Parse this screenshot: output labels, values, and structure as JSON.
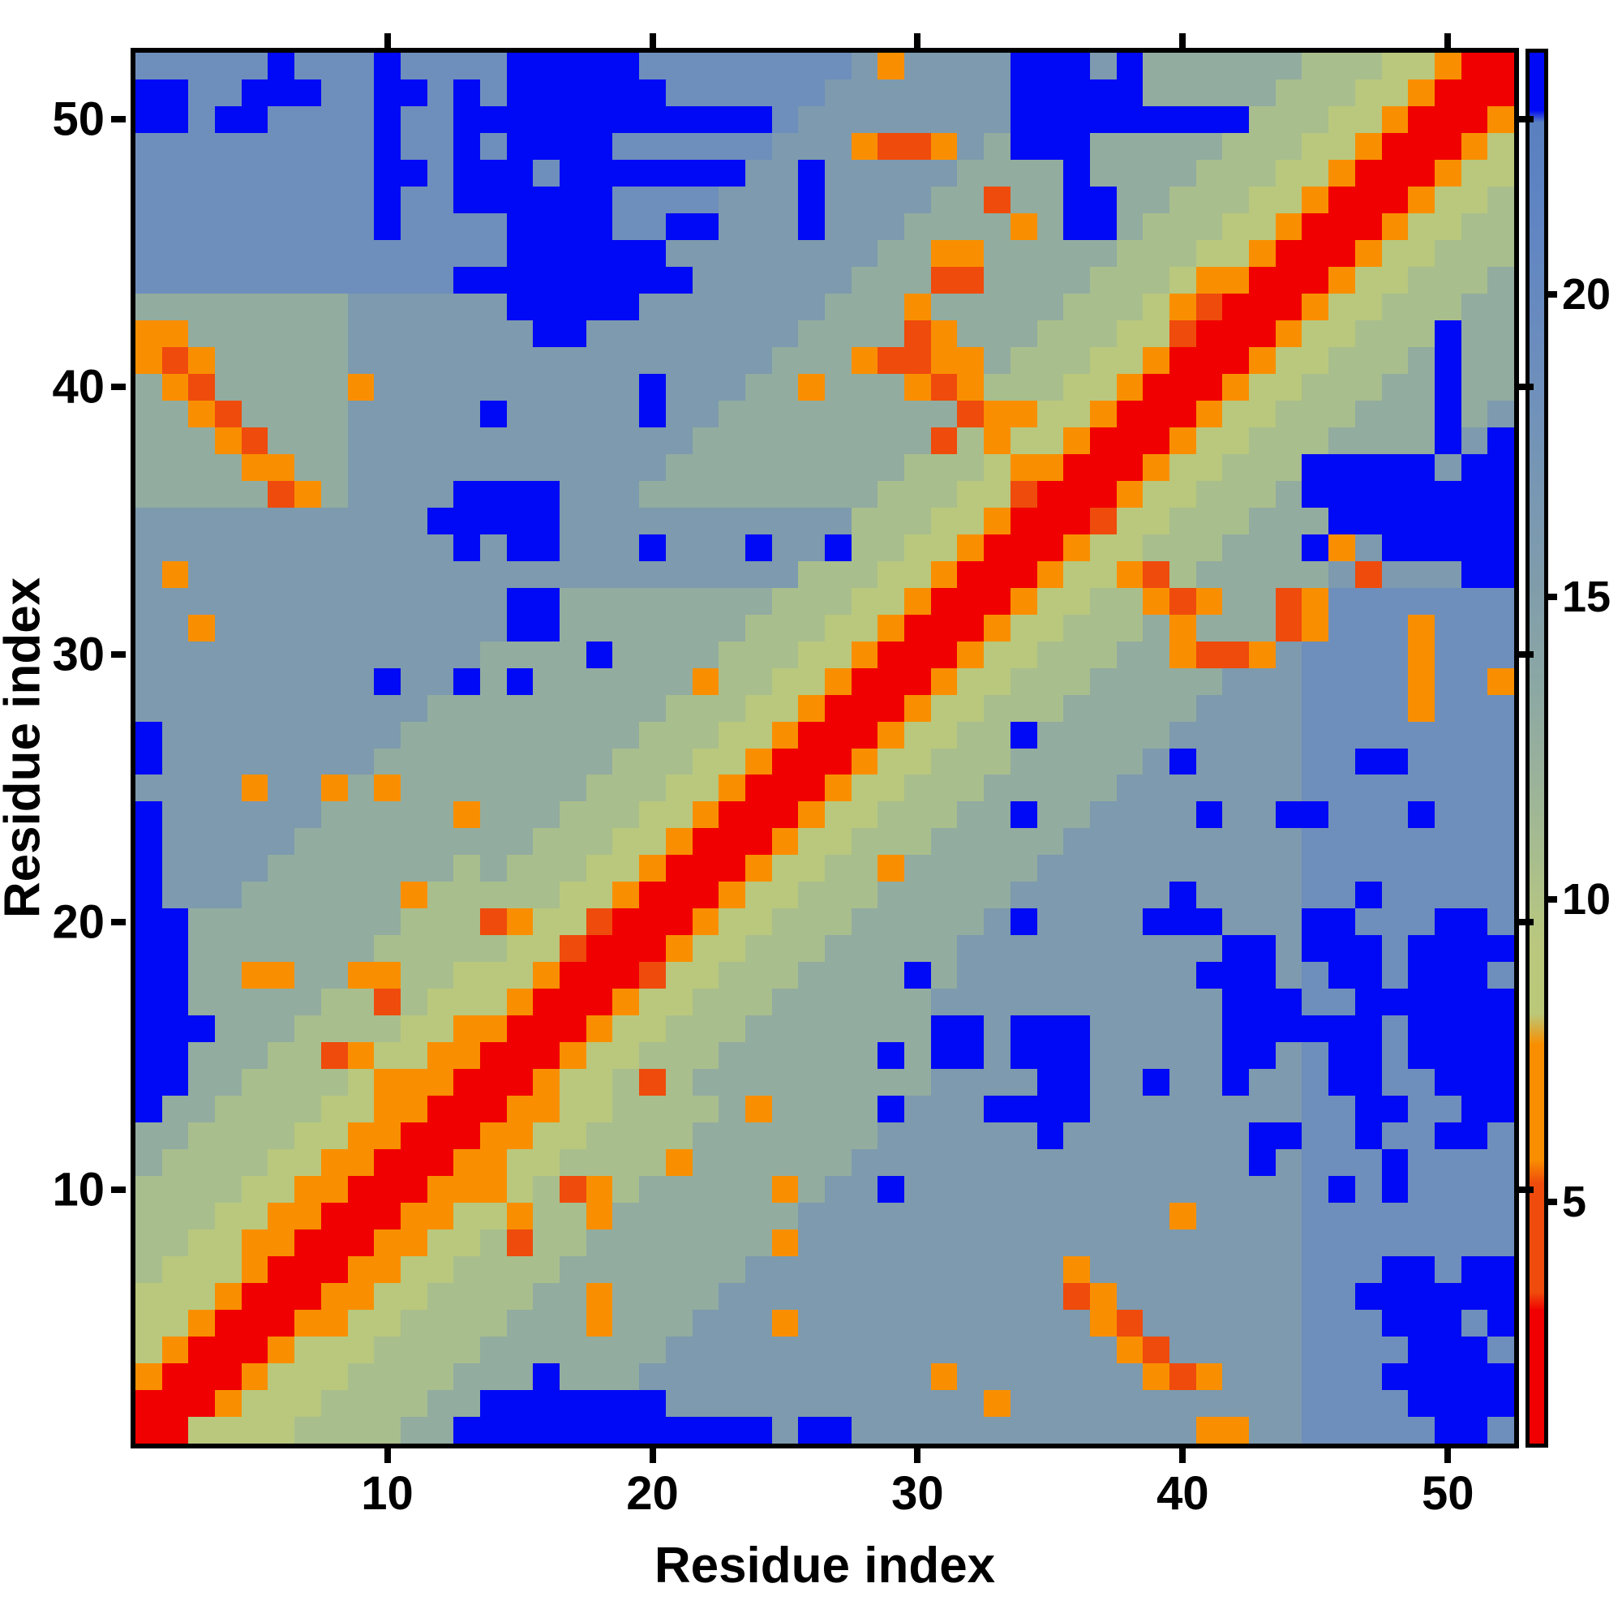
{
  "figure": {
    "background": "#ffffff",
    "frame_color": "#000000",
    "x_axis": {
      "label": "Residue index",
      "ticks": [
        10,
        20,
        30,
        40,
        50
      ],
      "range": [
        0.5,
        52.5
      ]
    },
    "y_axis": {
      "label": "Residue index",
      "ticks": [
        10,
        20,
        30,
        40,
        50
      ],
      "range": [
        0.5,
        52.5
      ]
    },
    "colorbar": {
      "ticks": [
        5,
        10,
        15,
        20
      ],
      "value_range": [
        1,
        24
      ],
      "side": "right"
    }
  },
  "chart_data": {
    "type": "heatmap",
    "title": "",
    "xlabel": "Residue index",
    "ylabel": "Residue index",
    "n_residues": 52,
    "grid": false,
    "legend_position": "right-colorbar",
    "description": "Symmetric residue-residue distance matrix; red diagonal (short distances), orange flanking bands, green/gray mid-range background, pure blue cells for largest distances (>23).",
    "value_map": {
      "R": 2.0,
      "D": 4.5,
      "O": 6.5,
      "y": 9.0,
      "g": 10.6,
      "a": 12.8,
      "b": 15.8,
      "s": 18.6,
      "B": 20.8,
      "U": 23.5
    },
    "colormap_stops": [
      [
        1.0,
        "#f00000"
      ],
      [
        3.2,
        "#f00000"
      ],
      [
        3.5,
        "#ef4b0c"
      ],
      [
        5.3,
        "#ef4b0c"
      ],
      [
        5.7,
        "#f98f00"
      ],
      [
        7.6,
        "#f98f00"
      ],
      [
        8.1,
        "#bac878"
      ],
      [
        9.3,
        "#b9c87e"
      ],
      [
        10.7,
        "#a8bd8e"
      ],
      [
        12.2,
        "#98b09c"
      ],
      [
        13.6,
        "#8ba7a4"
      ],
      [
        15.2,
        "#809cab"
      ],
      [
        16.8,
        "#7897b3"
      ],
      [
        18.4,
        "#6f90bb"
      ],
      [
        20.0,
        "#6689c0"
      ],
      [
        21.5,
        "#5f84c2"
      ],
      [
        22.85,
        "#5a80c0"
      ],
      [
        23.05,
        "#0009f5"
      ],
      [
        24.0,
        "#0009f5"
      ]
    ],
    "rows_bottom_to_top": [
      "RRyyyyggggaaUUUUUUUUUUUUbUUbbbbbbbbbbbbbOObbsssssUUs",
      "RRROyyyggggaaUUUUUUUbbbbbbbbbbbbObbbbbbbbbbbssssUUUU",
      "ORRROyyyggggaaaUaaabbbbbbbbbbbObbbbbbbODObbbsssUUUUU",
      "yORRROyyyggggaaaaaaabbbbbbbbbbbbbbbbbODbbbbbssssUUUs",
      "yyORRROOyyggggaaaOaaabbbObbbbbbbbbbbODbbbbbbsssUUUsU",
      "yyyORRROOyyggggaaOaaaabbbbbbbbbbbbbDObbbbbbbssUUUUUU",
      "gyyyORRROOyyggggaaaaaaabbbbbbbbbbbbObbbbbbbbsssUUsUU",
      "ggyyOORRROOyygDggaaaaaaaObbbbbbbbbbbbbbbbbbbssssssss",
      "gggyyOORRROOyyOggOaaaaaaabbbbbbbbbbbbbbObbbbssssssss",
      "ggggyyOORRROOOygDOgaaaaaOabbUbbbbbbbbbbbbbbbsUsUssss",
      "aggggyyOORRROOyyggggOaaaaaabbbbbbbbbbbbbbbUbsssUssss",
      "aaggggyyOORRROOyyggggaaaaaaabbbbbbUbbbbbbbUUssUssUUs",
      "UaaggggyyOORRROOyyggggaOaaaaUbbbUUUUbbbbbbbbssUUssUU",
      "UUaaggggyOOORRROyygDgaaaaaaaaabbbbUUbbUbbUbbsUUssUUU",
      "UUaaaggDOyyOORRROyygggaaaaaaUaUUbUUUbbbbbUUbsUUsUUUU",
      "UUUaaaggggyyOORRROyygggaaaaaaaUUbUUUbbbbbUUUUUUsUUUU",
      "UUaaaaaggDgyyyORRROyygggaaaaaabbbbbbbbbbbUUUssUUUUUU",
      "UUaaOOaaOOggyyyORRRDyygggaaaaUabbbbbbbbbUUUbsUUsUUUs",
      "UUaaaaaaagggggyyDRRROyygggaaaaabbbbbbbbbbUUbUUUsUUUU",
      "UUaaaaaaaagggDOyyDRRROyygggaaaaabUbbbbUUUbbbUUsssUUs",
      "UbbbaaaaaaOgggggyyORRROyygggaaaaabbbbbbUbbbbssUsssss",
      "UbbbbaaaaaaagagggyyORRROyyggOaaaaabbbbbbbbbbssssssss",
      "UbbbbbaaaaaaaaagggyyORRROyygggaaaaabbbbbbbbbssssssss",
      "UbbbbbbaaaaaOaaagggyyORRROyygggaaUaabbbbUbbUUsssUsss",
      "bbbbObbOaOaaaaaaagggyyORRROyygggaaaaabbbbbbbssssssss",
      "UbbbbbbbbaaaaaaaaagggyyORRROyygggaaaaabUbbbbssUUssss",
      "UbbbbbbbbbaaaaaaaaagggyyORRROyyggUaaaaabbbbbssssssss",
      "bbbbbbbbbbbaaaaaaaaagggyyORRROyygggaaaaabbbbssssOsss",
      "bbbbbbbbbUbbUaUaaaaaaOggyyORRROyygggaaaaabbbssssOssO",
      "bbbbbbbbbbbbbaaaaUaaaagggyyORRROyygggaaODDObssssOsss",
      "bbObbbbbbbbbbbUUaaaaaaagggyyORRROyygggaOaaaDOsssOsss",
      "bbbbbbbbbbbbbbUUaaaaaaaagggyyORRROyyggODOaaDOsssssss",
      "bObbbbbbbbbbbbbbbbbbbbbbbgggyyORRROyyODgaaaaabDbbbUU",
      "bbbbbbbbbbbbUbUUbbbUbbbUbbUggyyORRROyygggaaaUObUUUUU",
      "bbbbbbbbbbbUUUUUbbbbbbbbbbbgggyyORRRDyygggaaaUUUUUUU",
      "aaaaaDOabbbbUUUUbbbaaaaaaaaagggyyDRRROyygggaUUUUUUUU",
      "aaaaOOaabbbbbbbbbbbbaaaaaaaaagggyOORRROyygggUUUUUbUU",
      "aaaODaaabbbbbbbbbbbbbaaaaaaaaaDgOyyORRROyygggaaaaUbU",
      "aaODaaaabbbbbUbbbbbUbbaaaaaaaaaDOOyyORRROyygggaaaUab",
      "aODaaaaaObbbbbbbbbbUbbbaaOaaaODOgggyyORRROyygggaaUaa",
      "ODOaaaaabbbbbbbbbbbbbbbbaaaODDOOagggyyORRROyygggaUaa",
      "OOaaaaaabbbbbbbUUbbbbbbbbaaaaDOaaagggyyDRRROyygggUaa",
      "aaaaaaaabbbbbbUUUUUbbbbbbbaaaOaaaaagggyODRRROyygggaa",
      "ssssssssssssUUUUUUUUUbbbbbbaaaDDaaaagggyOORRROyyggga",
      "ssssssssssssssUUUUUUbbbbbbbbaaOOaaaaagggyyORRROyyggg",
      "sssssssssUssssUUUUssUUbbbUbbbaaaaOaUUagggyyORRROyygg",
      "sssssssssUssUUUUUUssssbbbUbbbbaaDaaUUaagggyyORRROyyg",
      "sssssssssUUsUUUsUUUUUUUbbUbbbbbaaaaUaaaagggyyORRROyy",
      "sssssssssUssUsUUUUssssssbbbODDObaUUUaaaaagggyyORRROy",
      "UUsUUssssUssUUUUUUUUUUUUsbbbbbbbbUUUUUUUUUgggyyORRRO",
      "UUssUUUssUUsUsUUUUUUssssssbbbbbbbUUUUUaaaaagggyyORRR",
      "sssssUsssUssssUUUUUssssssssbObbbbUUUbUaaaaaagggyyORR"
    ]
  }
}
